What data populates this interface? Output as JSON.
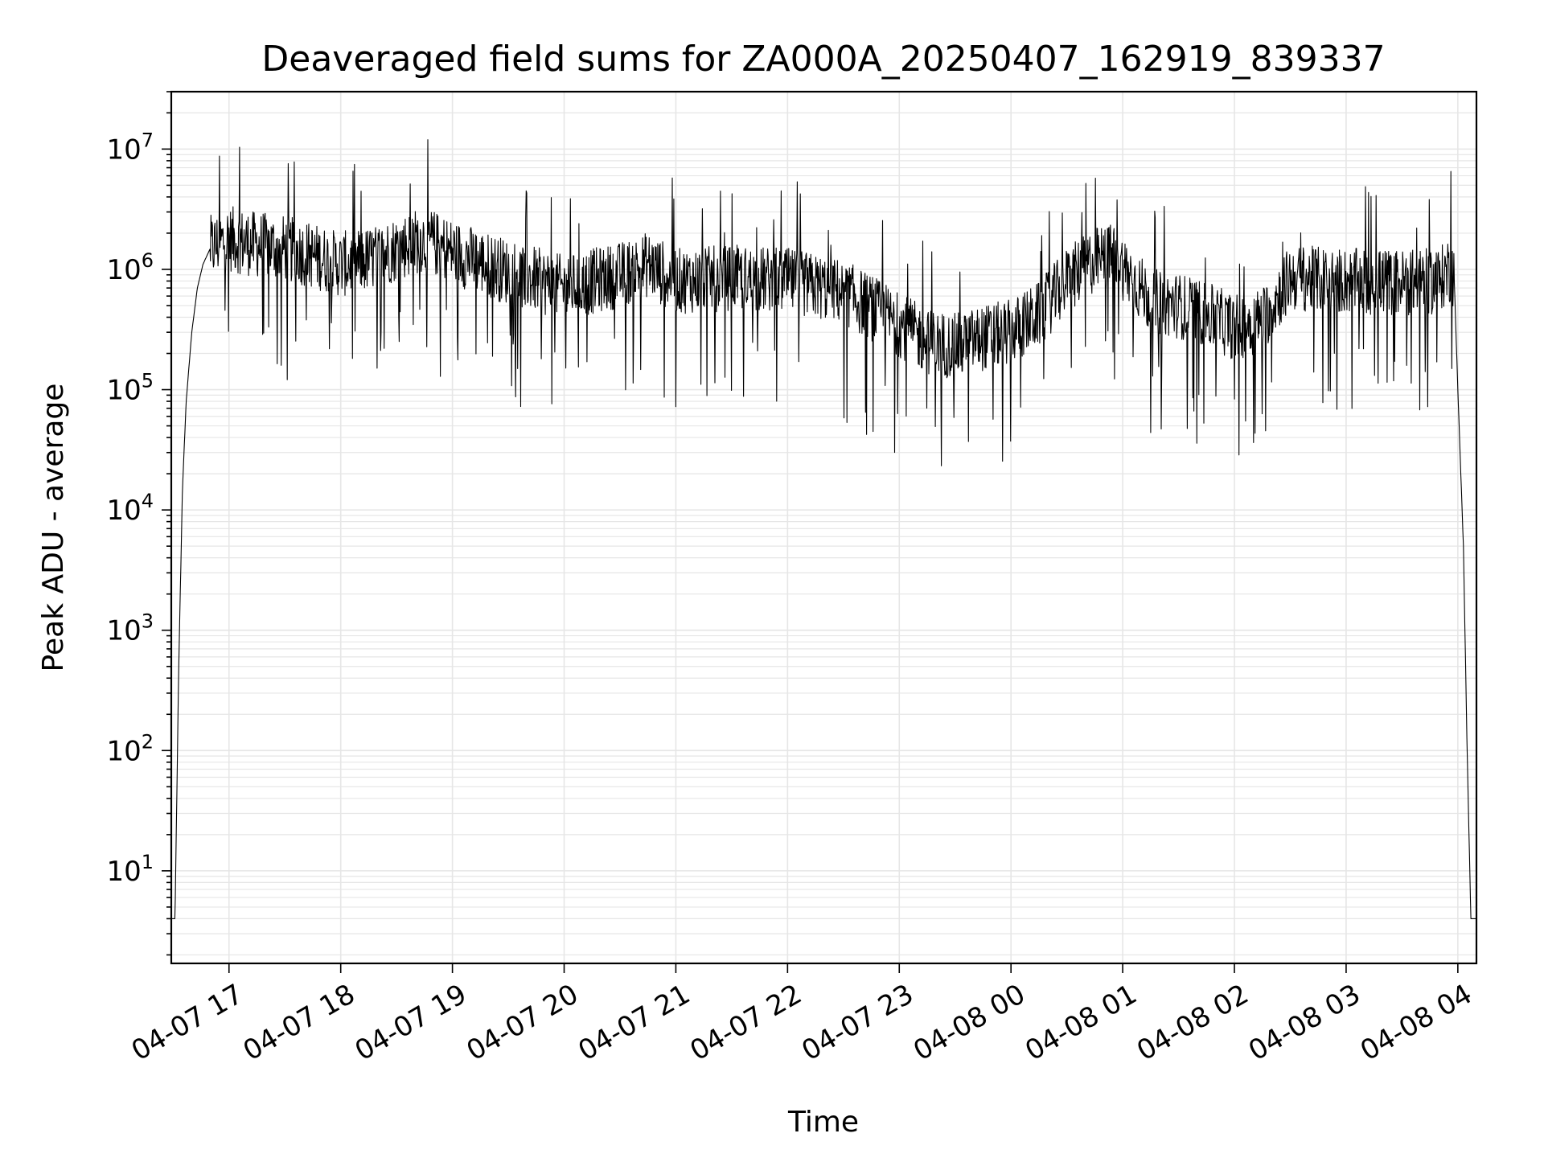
{
  "chart_data": {
    "type": "line",
    "title": "Deaveraged field sums for ZA000A_20250407_162919_839337",
    "xlabel": "Time",
    "ylabel": "Peak ADU - average",
    "y_scale": "log",
    "ylim": [
      1.7,
      30000000
    ],
    "xlim": [
      "04-07 16:29",
      "04-08 04:10"
    ],
    "grid": true,
    "legend": "none",
    "line_color": "#000000",
    "grid_color": "#e6e6e6",
    "x_ticks": [
      "04-07 17",
      "04-07 18",
      "04-07 19",
      "04-07 20",
      "04-07 21",
      "04-07 22",
      "04-07 23",
      "04-08 00",
      "04-08 01",
      "04-08 02",
      "04-08 03",
      "04-08 04"
    ],
    "y_ticks": [
      {
        "label": "10",
        "exp": "1",
        "value": 10
      },
      {
        "label": "10",
        "exp": "2",
        "value": 100
      },
      {
        "label": "10",
        "exp": "3",
        "value": 1000
      },
      {
        "label": "10",
        "exp": "4",
        "value": 10000
      },
      {
        "label": "10",
        "exp": "5",
        "value": 100000
      },
      {
        "label": "10",
        "exp": "6",
        "value": 1000000
      },
      {
        "label": "10",
        "exp": "7",
        "value": 10000000
      }
    ],
    "series": [
      {
        "x": [
          "04-07 16:29",
          "04-07 16:31",
          "04-07 16:33",
          "04-07 16:35",
          "04-07 16:37",
          "04-07 16:40",
          "04-07 16:43",
          "04-07 16:46",
          "04-07 16:50",
          "04-07 17:00",
          "04-07 17:15",
          "04-07 17:30",
          "04-07 17:45",
          "04-07 18:00",
          "04-07 18:15",
          "04-07 18:30",
          "04-07 18:45",
          "04-07 19:00",
          "04-07 19:30",
          "04-07 20:00",
          "04-07 20:30",
          "04-07 20:45",
          "04-07 21:00",
          "04-07 21:30",
          "04-07 22:00",
          "04-07 22:30",
          "04-07 23:00",
          "04-07 23:15",
          "04-07 23:30",
          "04-07 23:45",
          "04-08 00:00",
          "04-08 00:15",
          "04-08 00:30",
          "04-08 00:45",
          "04-08 00:55",
          "04-08 01:15",
          "04-08 01:30",
          "04-08 01:45",
          "04-08 02:00",
          "04-08 02:15",
          "04-08 02:30",
          "04-08 03:00",
          "04-08 03:30",
          "04-08 03:50",
          "04-08 03:55",
          "04-08 03:58",
          "04-08 04:00",
          "04-08 04:03",
          "04-08 04:05",
          "04-08 04:07",
          "04-08 04:10"
        ],
        "y": [
          4,
          4,
          500,
          15000,
          80000,
          300000,
          700000,
          1100000,
          1500000,
          1800000,
          1600000,
          1500000,
          1300000,
          1100000,
          1200000,
          1500000,
          1800000,
          1400000,
          950000,
          700000,
          900000,
          1100000,
          800000,
          850000,
          800000,
          650000,
          350000,
          250000,
          230000,
          270000,
          300000,
          420000,
          800000,
          1200000,
          1300000,
          550000,
          500000,
          420000,
          330000,
          380000,
          850000,
          800000,
          780000,
          800000,
          1000000,
          900000,
          100000,
          5000,
          100,
          4,
          4
        ]
      }
    ]
  }
}
